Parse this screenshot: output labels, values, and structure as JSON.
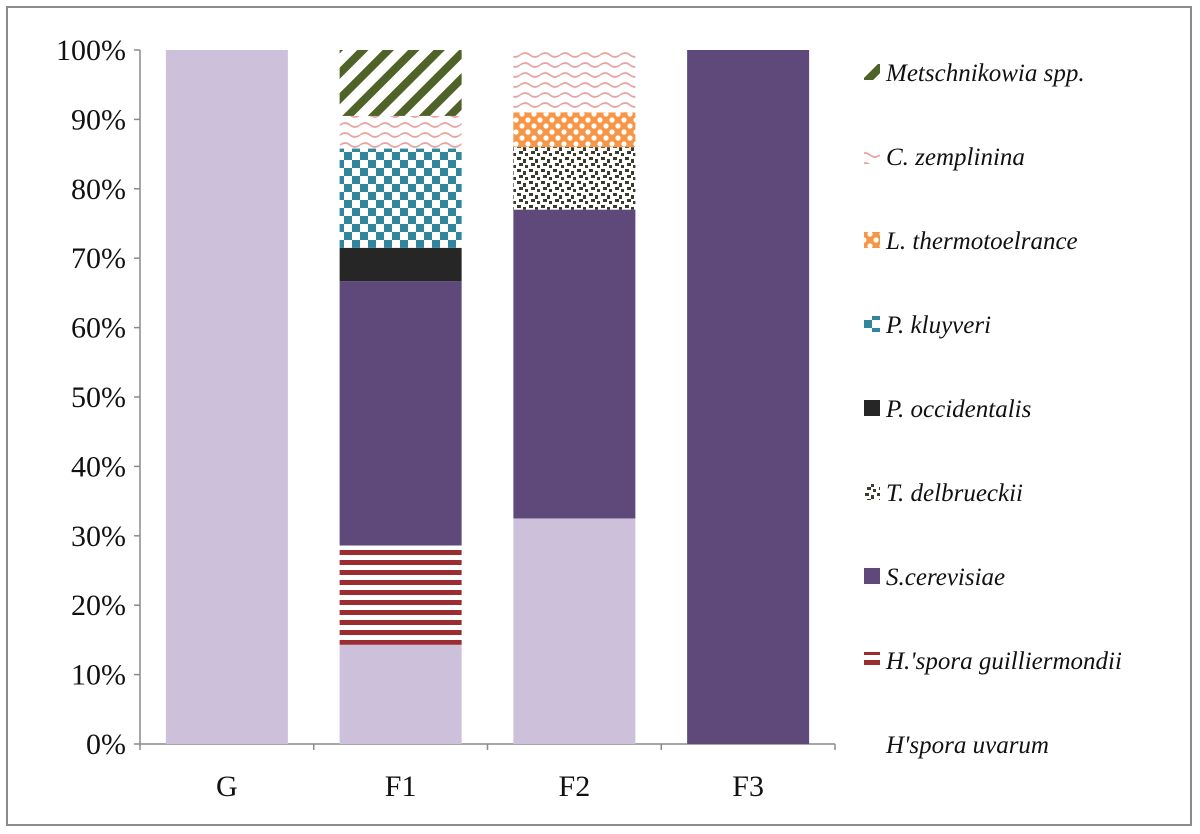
{
  "chart_data": {
    "type": "bar",
    "stacked": true,
    "normalized": true,
    "categories": [
      "G",
      "F1",
      "F2",
      "F3"
    ],
    "ylim": [
      0,
      100
    ],
    "yticks": [
      "0%",
      "10%",
      "20%",
      "30%",
      "40%",
      "50%",
      "60%",
      "70%",
      "80%",
      "90%",
      "100%"
    ],
    "grid": false,
    "legend_position": "right",
    "series": [
      {
        "name": "H'spora uvarum",
        "pattern": "solid",
        "color": "#ccc0da",
        "values": [
          100,
          14.3,
          32.5,
          0
        ]
      },
      {
        "name": "H.'spora guilliermondii",
        "pattern": "horizontal-stripes",
        "color": "#9b2d30",
        "values": [
          0,
          14.3,
          0,
          0
        ]
      },
      {
        "name": "S.cerevisiae",
        "pattern": "solid",
        "color": "#5f497a",
        "values": [
          0,
          38.1,
          44.5,
          100
        ]
      },
      {
        "name": "T.  delbrueckii",
        "pattern": "confetti",
        "color": "#4a4a3a",
        "values": [
          0,
          0,
          9,
          0
        ]
      },
      {
        "name": "P. occidentalis",
        "pattern": "solid",
        "color": "#262626",
        "values": [
          0,
          4.8,
          0,
          0
        ]
      },
      {
        "name": "P. kluyveri",
        "pattern": "checker",
        "color": "#31859c",
        "values": [
          0,
          14.3,
          0,
          0
        ]
      },
      {
        "name": "L. thermotoelrance",
        "pattern": "lattice",
        "color": "#f79646",
        "values": [
          0,
          0,
          5,
          0
        ]
      },
      {
        "name": "C. zemplinina",
        "pattern": "wave",
        "color": "#e6b9b8",
        "values": [
          0,
          4.7,
          9,
          0
        ]
      },
      {
        "name": "Metschnikowia spp.",
        "pattern": "diagonal-stripes",
        "color": "#4f6228",
        "values": [
          0,
          9.5,
          0,
          0
        ]
      }
    ]
  }
}
